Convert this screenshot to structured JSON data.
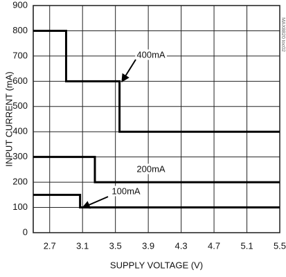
{
  "chart_data": {
    "type": "line",
    "x_label": "SUPPLY VOLTAGE (V)",
    "y_label": "INPUT CURRENT (mA)",
    "annotations": [
      "400mA",
      "200mA",
      "100mA"
    ],
    "side_note": "MAX8820 toc02",
    "series": [
      {
        "name": "400mA",
        "color": "#000000",
        "x": [
          2.5,
          2.9,
          2.9,
          3.55,
          3.55,
          5.5
        ],
        "values": [
          800,
          800,
          600,
          600,
          400,
          400
        ]
      },
      {
        "name": "200mA",
        "color": "#000000",
        "x": [
          2.5,
          3.25,
          3.25,
          5.5
        ],
        "values": [
          300,
          300,
          200,
          200
        ]
      },
      {
        "name": "100mA",
        "color": "#000000",
        "x": [
          2.5,
          3.07,
          3.07,
          5.5
        ],
        "values": [
          150,
          150,
          100,
          100
        ]
      }
    ],
    "xlim": [
      2.5,
      5.5
    ],
    "xticks": [
      2.7,
      3.1,
      3.5,
      3.9,
      4.3,
      4.7,
      5.1,
      5.5
    ],
    "ylim": [
      0,
      900
    ],
    "yticks": [
      0,
      100,
      200,
      300,
      400,
      500,
      600,
      700,
      800,
      900
    ],
    "grid": true
  }
}
